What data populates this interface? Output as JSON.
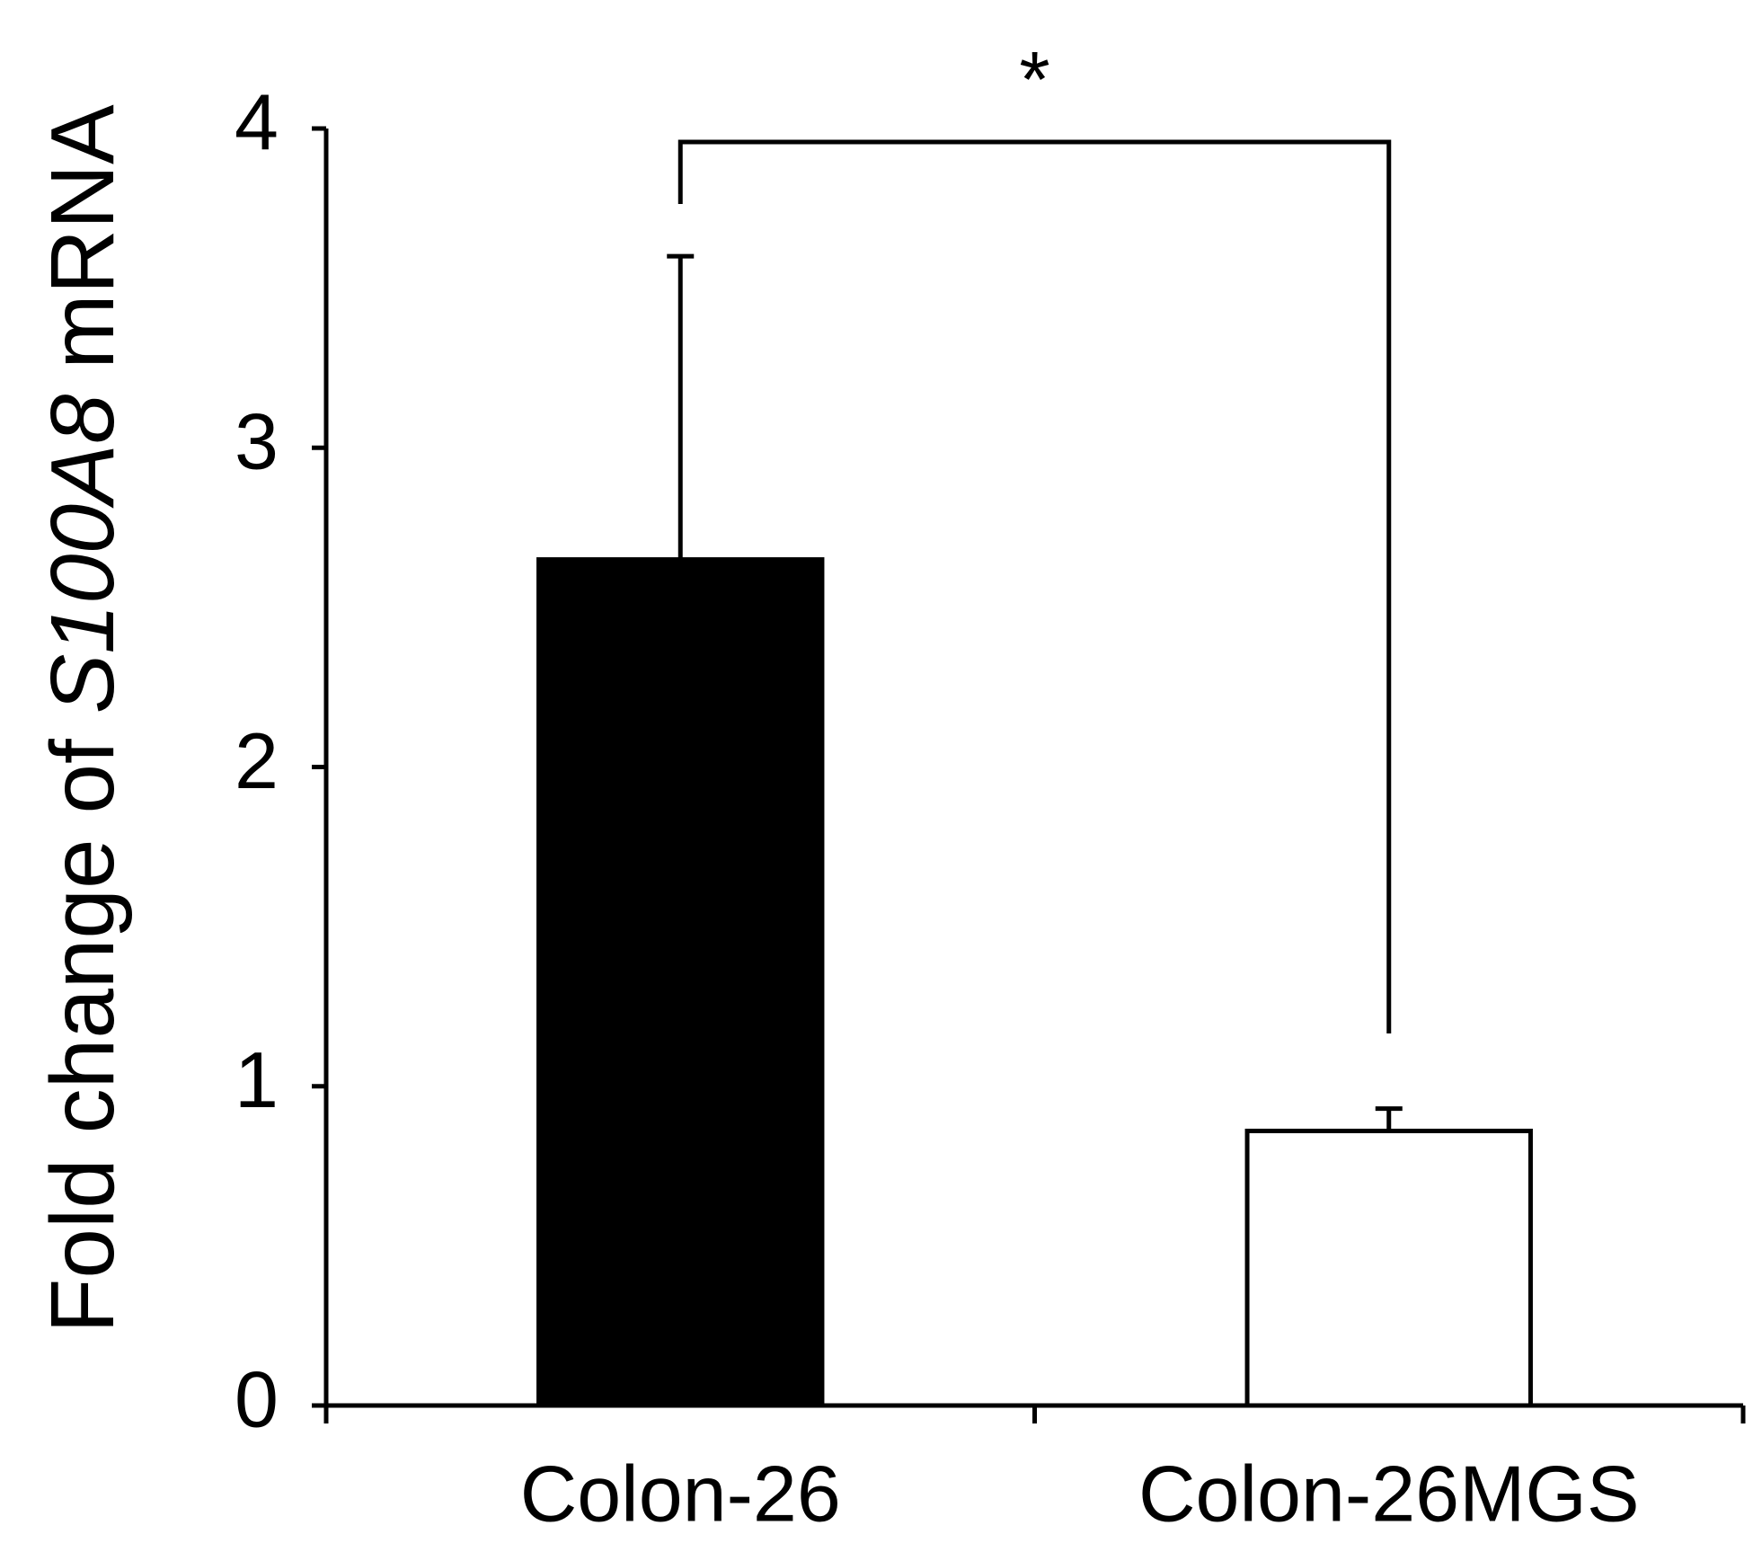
{
  "chart_data": {
    "type": "bar",
    "ylabel": {
      "prefix": "Fold change of",
      "gene": "S100A8",
      "suffix": "mRNA"
    },
    "categories": [
      "Colon-26",
      "Colon-26MGS"
    ],
    "values": [
      2.65,
      0.86
    ],
    "errors": [
      0.95,
      0.07
    ],
    "colors": [
      "#000000",
      "#ffffff"
    ],
    "ylim": [
      0,
      4
    ],
    "yticks": [
      0,
      1,
      2,
      3,
      4
    ],
    "annotation": "*",
    "grid": false
  }
}
